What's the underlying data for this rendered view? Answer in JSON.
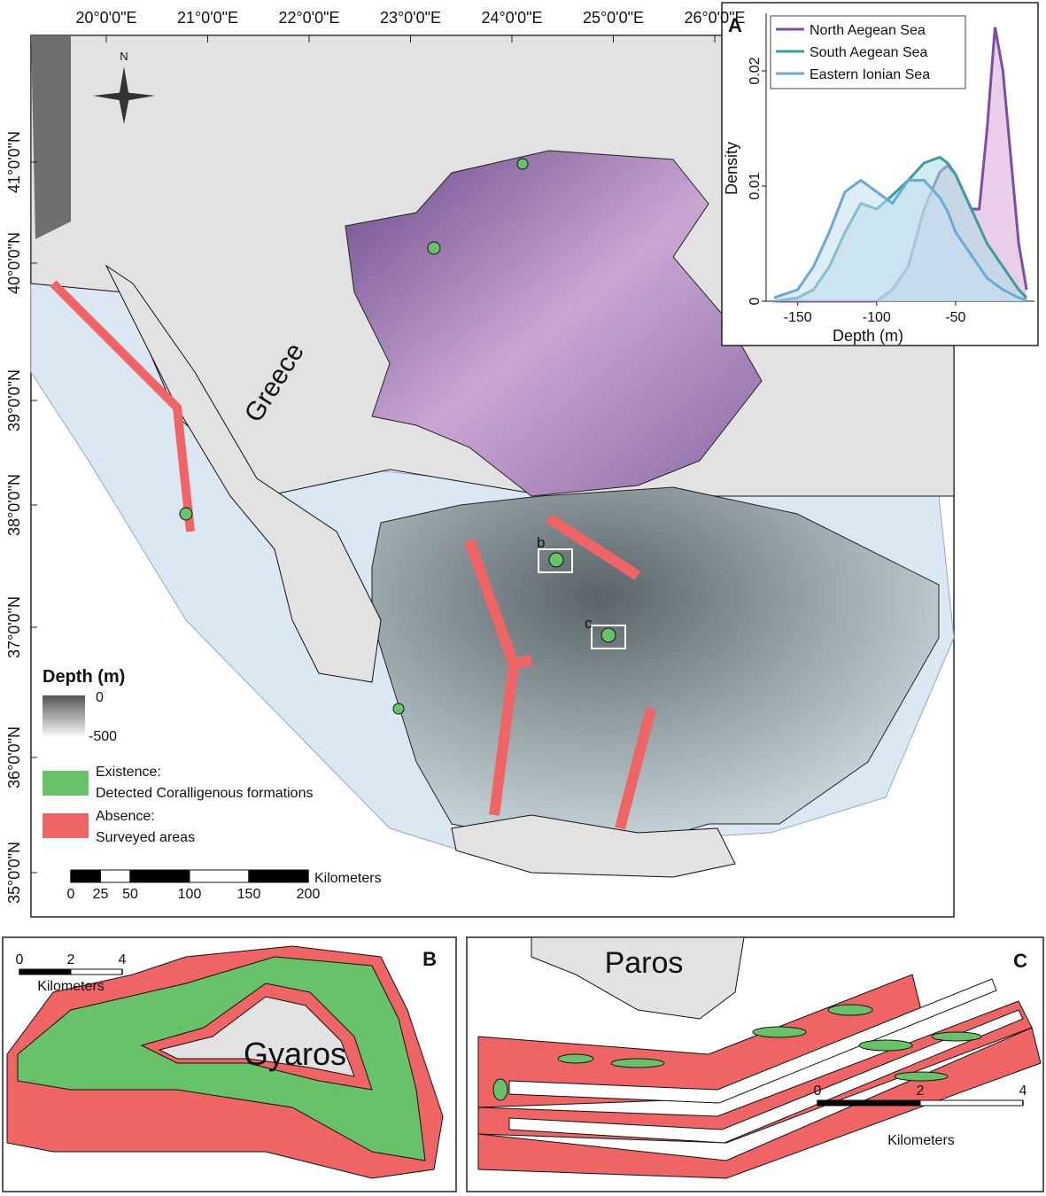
{
  "map": {
    "lon_labels": [
      "20°0'0\"E",
      "21°0'0\"E",
      "22°0'0\"E",
      "23°0'0\"E",
      "24°0'0\"E",
      "25°0'0\"E",
      "26°0'0\"E"
    ],
    "lat_labels": [
      "41°0'0\"N",
      "40°0'0\"N",
      "39°0'0\"N",
      "38°0'0\"N",
      "37°0'0\"N",
      "36°0'0\"N",
      "35°0'0\"N"
    ],
    "north": "N",
    "country": "Greece",
    "box_b": "b",
    "box_c": "c",
    "legend": {
      "title": "Depth (m)",
      "depth_ticks": [
        0,
        -500
      ],
      "existence": "Existence:",
      "existence_desc": "Detected Coralligenous formations",
      "absence": "Absence:",
      "absence_desc": "Surveyed areas",
      "existence_color": "#67c26a",
      "absence_color": "#ef6464"
    },
    "scale": {
      "unit": "Kilometers",
      "ticks": [
        0,
        25,
        50,
        100,
        150,
        200
      ]
    }
  },
  "chart_data": {
    "type": "area",
    "panel_label": "A",
    "xlabel": "Depth (m)",
    "ylabel": "Density",
    "xlim": [
      -170,
      0
    ],
    "ylim": [
      0,
      0.025
    ],
    "xticks": [
      -150,
      -100,
      -50
    ],
    "yticks": [
      0,
      0.01,
      0.02
    ],
    "x": [
      -165,
      -150,
      -140,
      -130,
      -120,
      -110,
      -100,
      -90,
      -80,
      -70,
      -60,
      -55,
      -50,
      -40,
      -35,
      -30,
      -25,
      -20,
      -10,
      -5
    ],
    "series": [
      {
        "name": "North Aegean Sea",
        "color": "#7b4fa6",
        "fill": "#d9a8d9",
        "values": [
          0,
          0,
          0,
          0,
          0,
          0,
          0,
          0.001,
          0.003,
          0.008,
          0.0112,
          0.0118,
          0.011,
          0.008,
          0.008,
          0.015,
          0.0238,
          0.02,
          0.005,
          0.001
        ]
      },
      {
        "name": "South Aegean Sea",
        "color": "#3c9c9c",
        "fill": "#a9dede",
        "values": [
          0,
          0.0003,
          0.001,
          0.003,
          0.006,
          0.0085,
          0.008,
          0.0092,
          0.0105,
          0.012,
          0.0125,
          0.012,
          0.011,
          0.008,
          0.0065,
          0.005,
          0.004,
          0.003,
          0.001,
          0.0003
        ]
      },
      {
        "name": "Eastern Ionian Sea",
        "color": "#6aaad8",
        "fill": "#c4def0",
        "values": [
          0.0003,
          0.001,
          0.003,
          0.006,
          0.0095,
          0.0105,
          0.0095,
          0.0085,
          0.0105,
          0.0105,
          0.009,
          0.0078,
          0.006,
          0.004,
          0.003,
          0.002,
          0.0015,
          0.001,
          0.0003,
          0.0001
        ]
      }
    ]
  },
  "panel_b": {
    "label": "B",
    "island": "Gyaros",
    "unit": "Kilometers",
    "ticks": [
      0,
      2,
      4
    ]
  },
  "panel_c": {
    "label": "C",
    "island": "Paros",
    "unit": "Kilometers",
    "ticks": [
      0,
      2,
      4
    ]
  }
}
